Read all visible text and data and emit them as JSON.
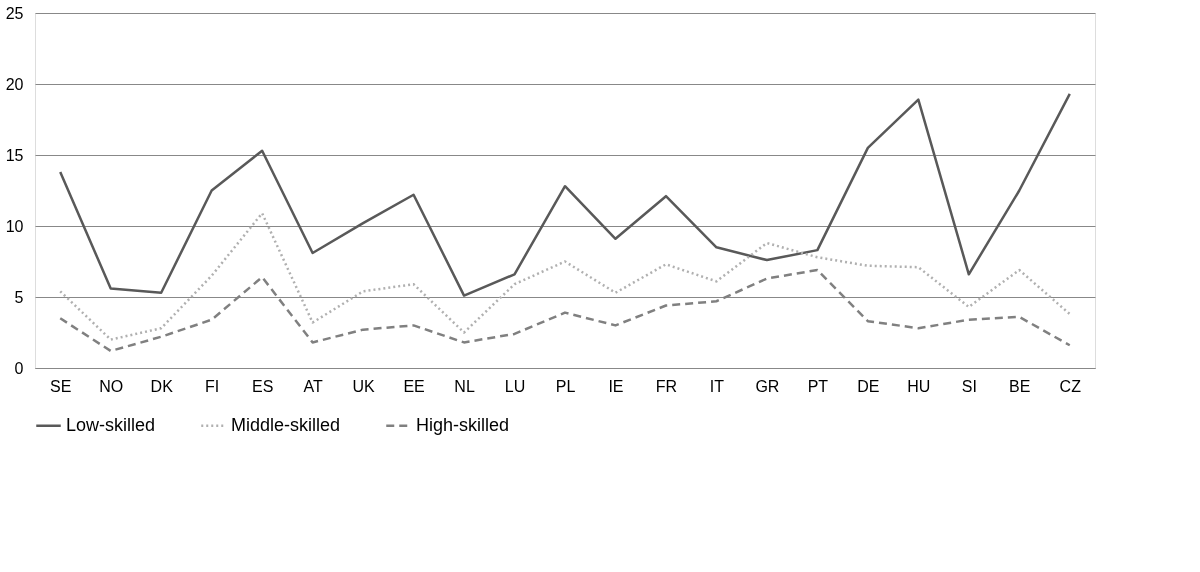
{
  "chart_data": {
    "type": "line",
    "categories": [
      "SE",
      "NO",
      "DK",
      "FI",
      "ES",
      "AT",
      "UK",
      "EE",
      "NL",
      "LU",
      "PL",
      "IE",
      "FR",
      "IT",
      "GR",
      "PT",
      "DE",
      "HU",
      "SI",
      "BE",
      "CZ"
    ],
    "series": [
      {
        "name": "Low-skilled",
        "color": "#595959",
        "line_style": "solid",
        "values": [
          13.8,
          5.6,
          5.3,
          12.5,
          15.3,
          8.1,
          10.2,
          12.2,
          5.1,
          6.6,
          12.8,
          9.1,
          12.1,
          8.5,
          7.6,
          8.3,
          15.5,
          18.9,
          6.6,
          12.5,
          19.3
        ]
      },
      {
        "name": "Middle-skilled",
        "color": "#b0b0b0",
        "line_style": "dotted",
        "values": [
          5.4,
          2.0,
          2.8,
          6.5,
          10.9,
          3.2,
          5.4,
          5.9,
          2.5,
          5.9,
          7.5,
          5.3,
          7.3,
          6.1,
          8.8,
          7.8,
          7.2,
          7.1,
          4.3,
          6.9,
          3.8
        ]
      },
      {
        "name": "High-skilled",
        "color": "#808080",
        "line_style": "dashed",
        "values": [
          3.5,
          1.2,
          2.2,
          3.4,
          6.4,
          1.8,
          2.7,
          3.0,
          1.8,
          2.4,
          3.9,
          3.0,
          4.4,
          4.7,
          6.3,
          6.9,
          3.3,
          2.8,
          3.4,
          3.6,
          1.6
        ]
      }
    ],
    "ylim": [
      0,
      25
    ],
    "yticks": [
      0,
      5,
      10,
      15,
      20,
      25
    ],
    "grid": "y",
    "legend": "bottom"
  }
}
